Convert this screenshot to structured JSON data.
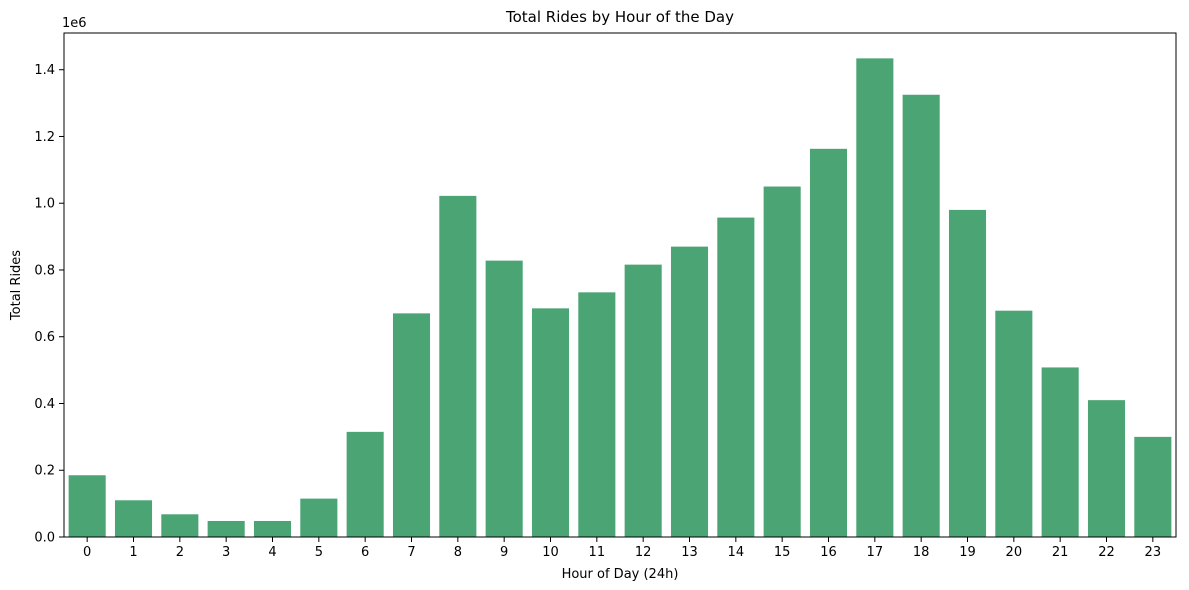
{
  "chart_data": {
    "type": "bar",
    "title": "Total Rides by Hour of the Day",
    "xlabel": "Hour of Day (24h)",
    "ylabel": "Total Rides",
    "y_offset_label": "1e6",
    "categories": [
      "0",
      "1",
      "2",
      "3",
      "4",
      "5",
      "6",
      "7",
      "8",
      "9",
      "10",
      "11",
      "12",
      "13",
      "14",
      "15",
      "16",
      "17",
      "18",
      "19",
      "20",
      "21",
      "22",
      "23"
    ],
    "values": [
      185000,
      110000,
      68000,
      48000,
      48000,
      115000,
      315000,
      670000,
      1022000,
      828000,
      685000,
      733000,
      816000,
      870000,
      957000,
      1050000,
      1163000,
      1434000,
      1325000,
      980000,
      678000,
      508000,
      410000,
      300000
    ],
    "ylim": [
      0,
      1510000
    ],
    "yticks": [
      0,
      200000,
      400000,
      600000,
      800000,
      1000000,
      1200000,
      1400000
    ],
    "ytick_labels": [
      "0.0",
      "0.2",
      "0.4",
      "0.6",
      "0.8",
      "1.0",
      "1.2",
      "1.4"
    ],
    "bar_color": "#4aa473",
    "grid": false,
    "legend": "none"
  }
}
